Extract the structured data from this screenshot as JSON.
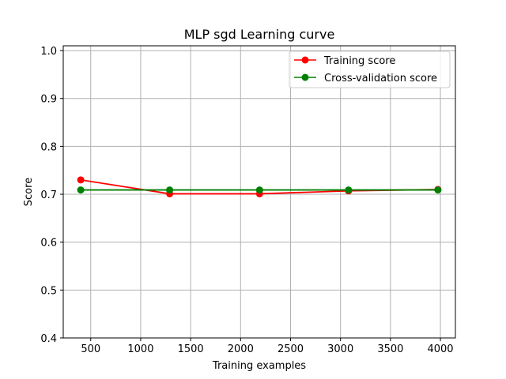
{
  "chart_data": {
    "type": "line",
    "title": "MLP sgd Learning curve",
    "xlabel": "Training examples",
    "ylabel": "Score",
    "xlim": [
      225,
      4150
    ],
    "ylim": [
      0.4,
      1.01
    ],
    "x_ticks": [
      500,
      1000,
      1500,
      2000,
      2500,
      3000,
      3500,
      4000
    ],
    "y_ticks": [
      0.4,
      0.5,
      0.6,
      0.7,
      0.8,
      0.9,
      1.0
    ],
    "x_tick_labels": [
      "500",
      "1000",
      "1500",
      "2000",
      "2500",
      "3000",
      "3500",
      "4000"
    ],
    "y_tick_labels": [
      "0.4",
      "0.5",
      "0.6",
      "0.7",
      "0.8",
      "0.9",
      "1.0"
    ],
    "grid": true,
    "legend_position": "upper-right",
    "x": [
      400,
      1290,
      2190,
      3080,
      3975
    ],
    "series": [
      {
        "name": "Training score",
        "color": "#ff0000",
        "marker": "circle",
        "values": [
          0.73,
          0.701,
          0.701,
          0.707,
          0.71
        ]
      },
      {
        "name": "Cross-validation score",
        "color": "#008000",
        "marker": "circle",
        "values": [
          0.709,
          0.709,
          0.709,
          0.709,
          0.709
        ]
      }
    ]
  }
}
